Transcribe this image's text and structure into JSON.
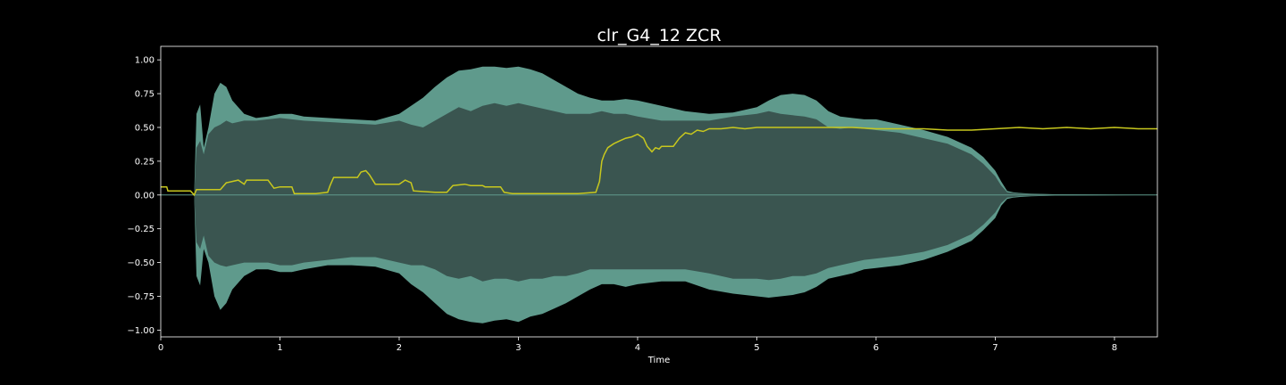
{
  "chart_data": {
    "type": "area",
    "title": "clr_G4_12 ZCR",
    "xlabel": "Time",
    "ylabel": "",
    "xlim": [
      0,
      8.36
    ],
    "ylim": [
      -1.05,
      1.1
    ],
    "x_ticks": [
      0,
      1,
      2,
      3,
      4,
      5,
      6,
      7,
      8
    ],
    "y_ticks": [
      1.0,
      0.75,
      0.5,
      0.25,
      0.0,
      -0.25,
      -0.5,
      -0.75,
      -1.0
    ],
    "y_tick_labels": [
      "1.00",
      "0.75",
      "0.50",
      "0.25",
      "0.00",
      "−0.25",
      "−0.50",
      "−0.75",
      "−1.00"
    ],
    "grid": false,
    "colors": {
      "background": "#000000",
      "waveform_outer": "#5f9a8c",
      "waveform_inner": "#3a5550",
      "zcr_line": "#c8c81e",
      "axes": "#ffffff"
    },
    "series": [
      {
        "kind": "waveform-envelope",
        "x": [
          0,
          0.28,
          0.3,
          0.33,
          0.36,
          0.4,
          0.45,
          0.5,
          0.55,
          0.6,
          0.7,
          0.8,
          0.9,
          1.0,
          1.1,
          1.2,
          1.4,
          1.6,
          1.8,
          2.0,
          2.1,
          2.2,
          2.3,
          2.4,
          2.5,
          2.6,
          2.7,
          2.8,
          2.9,
          3.0,
          3.1,
          3.2,
          3.3,
          3.4,
          3.5,
          3.6,
          3.7,
          3.8,
          3.9,
          4.0,
          4.2,
          4.4,
          4.6,
          4.8,
          5.0,
          5.1,
          5.2,
          5.3,
          5.4,
          5.5,
          5.6,
          5.7,
          5.8,
          5.9,
          6.0,
          6.2,
          6.4,
          6.6,
          6.8,
          6.9,
          7.0,
          7.05,
          7.1,
          7.15,
          7.2,
          7.3,
          7.5,
          8.36
        ],
        "upper": [
          0,
          0,
          0.6,
          0.67,
          0.35,
          0.5,
          0.75,
          0.83,
          0.8,
          0.7,
          0.6,
          0.57,
          0.58,
          0.6,
          0.6,
          0.58,
          0.57,
          0.56,
          0.55,
          0.6,
          0.66,
          0.72,
          0.8,
          0.87,
          0.92,
          0.93,
          0.95,
          0.95,
          0.94,
          0.95,
          0.93,
          0.9,
          0.85,
          0.8,
          0.75,
          0.72,
          0.7,
          0.7,
          0.71,
          0.7,
          0.66,
          0.62,
          0.6,
          0.61,
          0.65,
          0.7,
          0.74,
          0.75,
          0.74,
          0.7,
          0.62,
          0.58,
          0.57,
          0.56,
          0.56,
          0.52,
          0.48,
          0.43,
          0.35,
          0.28,
          0.18,
          0.1,
          0.03,
          0.02,
          0.015,
          0.01,
          0.005,
          0
        ],
        "lower": [
          0,
          0,
          -0.6,
          -0.67,
          -0.4,
          -0.5,
          -0.75,
          -0.85,
          -0.8,
          -0.7,
          -0.6,
          -0.55,
          -0.55,
          -0.57,
          -0.57,
          -0.55,
          -0.52,
          -0.52,
          -0.53,
          -0.58,
          -0.66,
          -0.72,
          -0.8,
          -0.88,
          -0.92,
          -0.94,
          -0.95,
          -0.93,
          -0.92,
          -0.94,
          -0.9,
          -0.88,
          -0.84,
          -0.8,
          -0.75,
          -0.7,
          -0.66,
          -0.66,
          -0.68,
          -0.66,
          -0.64,
          -0.64,
          -0.7,
          -0.73,
          -0.75,
          -0.76,
          -0.75,
          -0.74,
          -0.72,
          -0.68,
          -0.62,
          -0.6,
          -0.58,
          -0.55,
          -0.54,
          -0.52,
          -0.48,
          -0.42,
          -0.34,
          -0.26,
          -0.17,
          -0.08,
          -0.03,
          -0.02,
          -0.015,
          -0.01,
          -0.005,
          0
        ],
        "inner_upper": [
          0,
          0,
          0.35,
          0.4,
          0.3,
          0.45,
          0.5,
          0.52,
          0.55,
          0.53,
          0.55,
          0.55,
          0.56,
          0.57,
          0.56,
          0.55,
          0.54,
          0.53,
          0.52,
          0.55,
          0.52,
          0.5,
          0.55,
          0.6,
          0.65,
          0.62,
          0.66,
          0.68,
          0.66,
          0.68,
          0.66,
          0.64,
          0.62,
          0.6,
          0.6,
          0.6,
          0.62,
          0.6,
          0.6,
          0.58,
          0.55,
          0.55,
          0.55,
          0.58,
          0.6,
          0.62,
          0.6,
          0.59,
          0.58,
          0.56,
          0.5,
          0.49,
          0.5,
          0.49,
          0.48,
          0.46,
          0.42,
          0.38,
          0.3,
          0.23,
          0.14,
          0.07,
          0.02,
          0.015,
          0.01,
          0.008,
          0.004,
          0
        ],
        "inner_lower": [
          0,
          0,
          -0.35,
          -0.4,
          -0.3,
          -0.45,
          -0.5,
          -0.52,
          -0.53,
          -0.52,
          -0.5,
          -0.5,
          -0.5,
          -0.52,
          -0.52,
          -0.5,
          -0.48,
          -0.46,
          -0.46,
          -0.5,
          -0.52,
          -0.52,
          -0.55,
          -0.6,
          -0.62,
          -0.6,
          -0.64,
          -0.62,
          -0.62,
          -0.64,
          -0.62,
          -0.62,
          -0.6,
          -0.6,
          -0.58,
          -0.55,
          -0.55,
          -0.55,
          -0.55,
          -0.55,
          -0.55,
          -0.55,
          -0.58,
          -0.62,
          -0.62,
          -0.63,
          -0.62,
          -0.6,
          -0.6,
          -0.58,
          -0.54,
          -0.52,
          -0.5,
          -0.48,
          -0.47,
          -0.45,
          -0.42,
          -0.37,
          -0.29,
          -0.22,
          -0.13,
          -0.06,
          -0.02,
          -0.015,
          -0.01,
          -0.008,
          -0.004,
          0
        ]
      },
      {
        "kind": "line",
        "x": [
          0,
          0.05,
          0.06,
          0.25,
          0.28,
          0.3,
          0.5,
          0.55,
          0.6,
          0.65,
          0.7,
          0.72,
          0.9,
          0.95,
          1.0,
          1.1,
          1.12,
          1.3,
          1.4,
          1.42,
          1.45,
          1.65,
          1.68,
          1.72,
          1.75,
          1.8,
          1.83,
          2.0,
          2.05,
          2.1,
          2.12,
          2.3,
          2.35,
          2.4,
          2.45,
          2.55,
          2.6,
          2.7,
          2.72,
          2.85,
          2.88,
          2.95,
          3.0,
          3.1,
          3.3,
          3.4,
          3.5,
          3.65,
          3.68,
          3.7,
          3.72,
          3.75,
          3.8,
          3.85,
          3.9,
          3.95,
          4.0,
          4.05,
          4.08,
          4.12,
          4.15,
          4.18,
          4.2,
          4.3,
          4.35,
          4.4,
          4.45,
          4.5,
          4.55,
          4.6,
          4.7,
          4.8,
          4.9,
          5.0,
          5.2,
          5.5,
          5.8,
          6.0,
          6.2,
          6.4,
          6.6,
          6.8,
          7.0,
          7.2,
          7.4,
          7.6,
          7.8,
          8.0,
          8.2,
          8.36
        ],
        "y": [
          0.06,
          0.06,
          0.03,
          0.03,
          0.0,
          0.04,
          0.04,
          0.09,
          0.1,
          0.11,
          0.08,
          0.11,
          0.11,
          0.05,
          0.06,
          0.06,
          0.01,
          0.01,
          0.02,
          0.07,
          0.13,
          0.13,
          0.17,
          0.18,
          0.15,
          0.08,
          0.08,
          0.08,
          0.11,
          0.09,
          0.03,
          0.02,
          0.02,
          0.02,
          0.07,
          0.08,
          0.07,
          0.07,
          0.06,
          0.06,
          0.02,
          0.01,
          0.01,
          0.01,
          0.01,
          0.01,
          0.01,
          0.02,
          0.1,
          0.25,
          0.3,
          0.35,
          0.38,
          0.4,
          0.42,
          0.43,
          0.45,
          0.42,
          0.36,
          0.32,
          0.35,
          0.34,
          0.36,
          0.36,
          0.42,
          0.46,
          0.45,
          0.48,
          0.47,
          0.49,
          0.49,
          0.5,
          0.49,
          0.5,
          0.5,
          0.5,
          0.5,
          0.49,
          0.49,
          0.49,
          0.48,
          0.48,
          0.49,
          0.5,
          0.49,
          0.5,
          0.49,
          0.5,
          0.49,
          0.49
        ]
      }
    ]
  }
}
